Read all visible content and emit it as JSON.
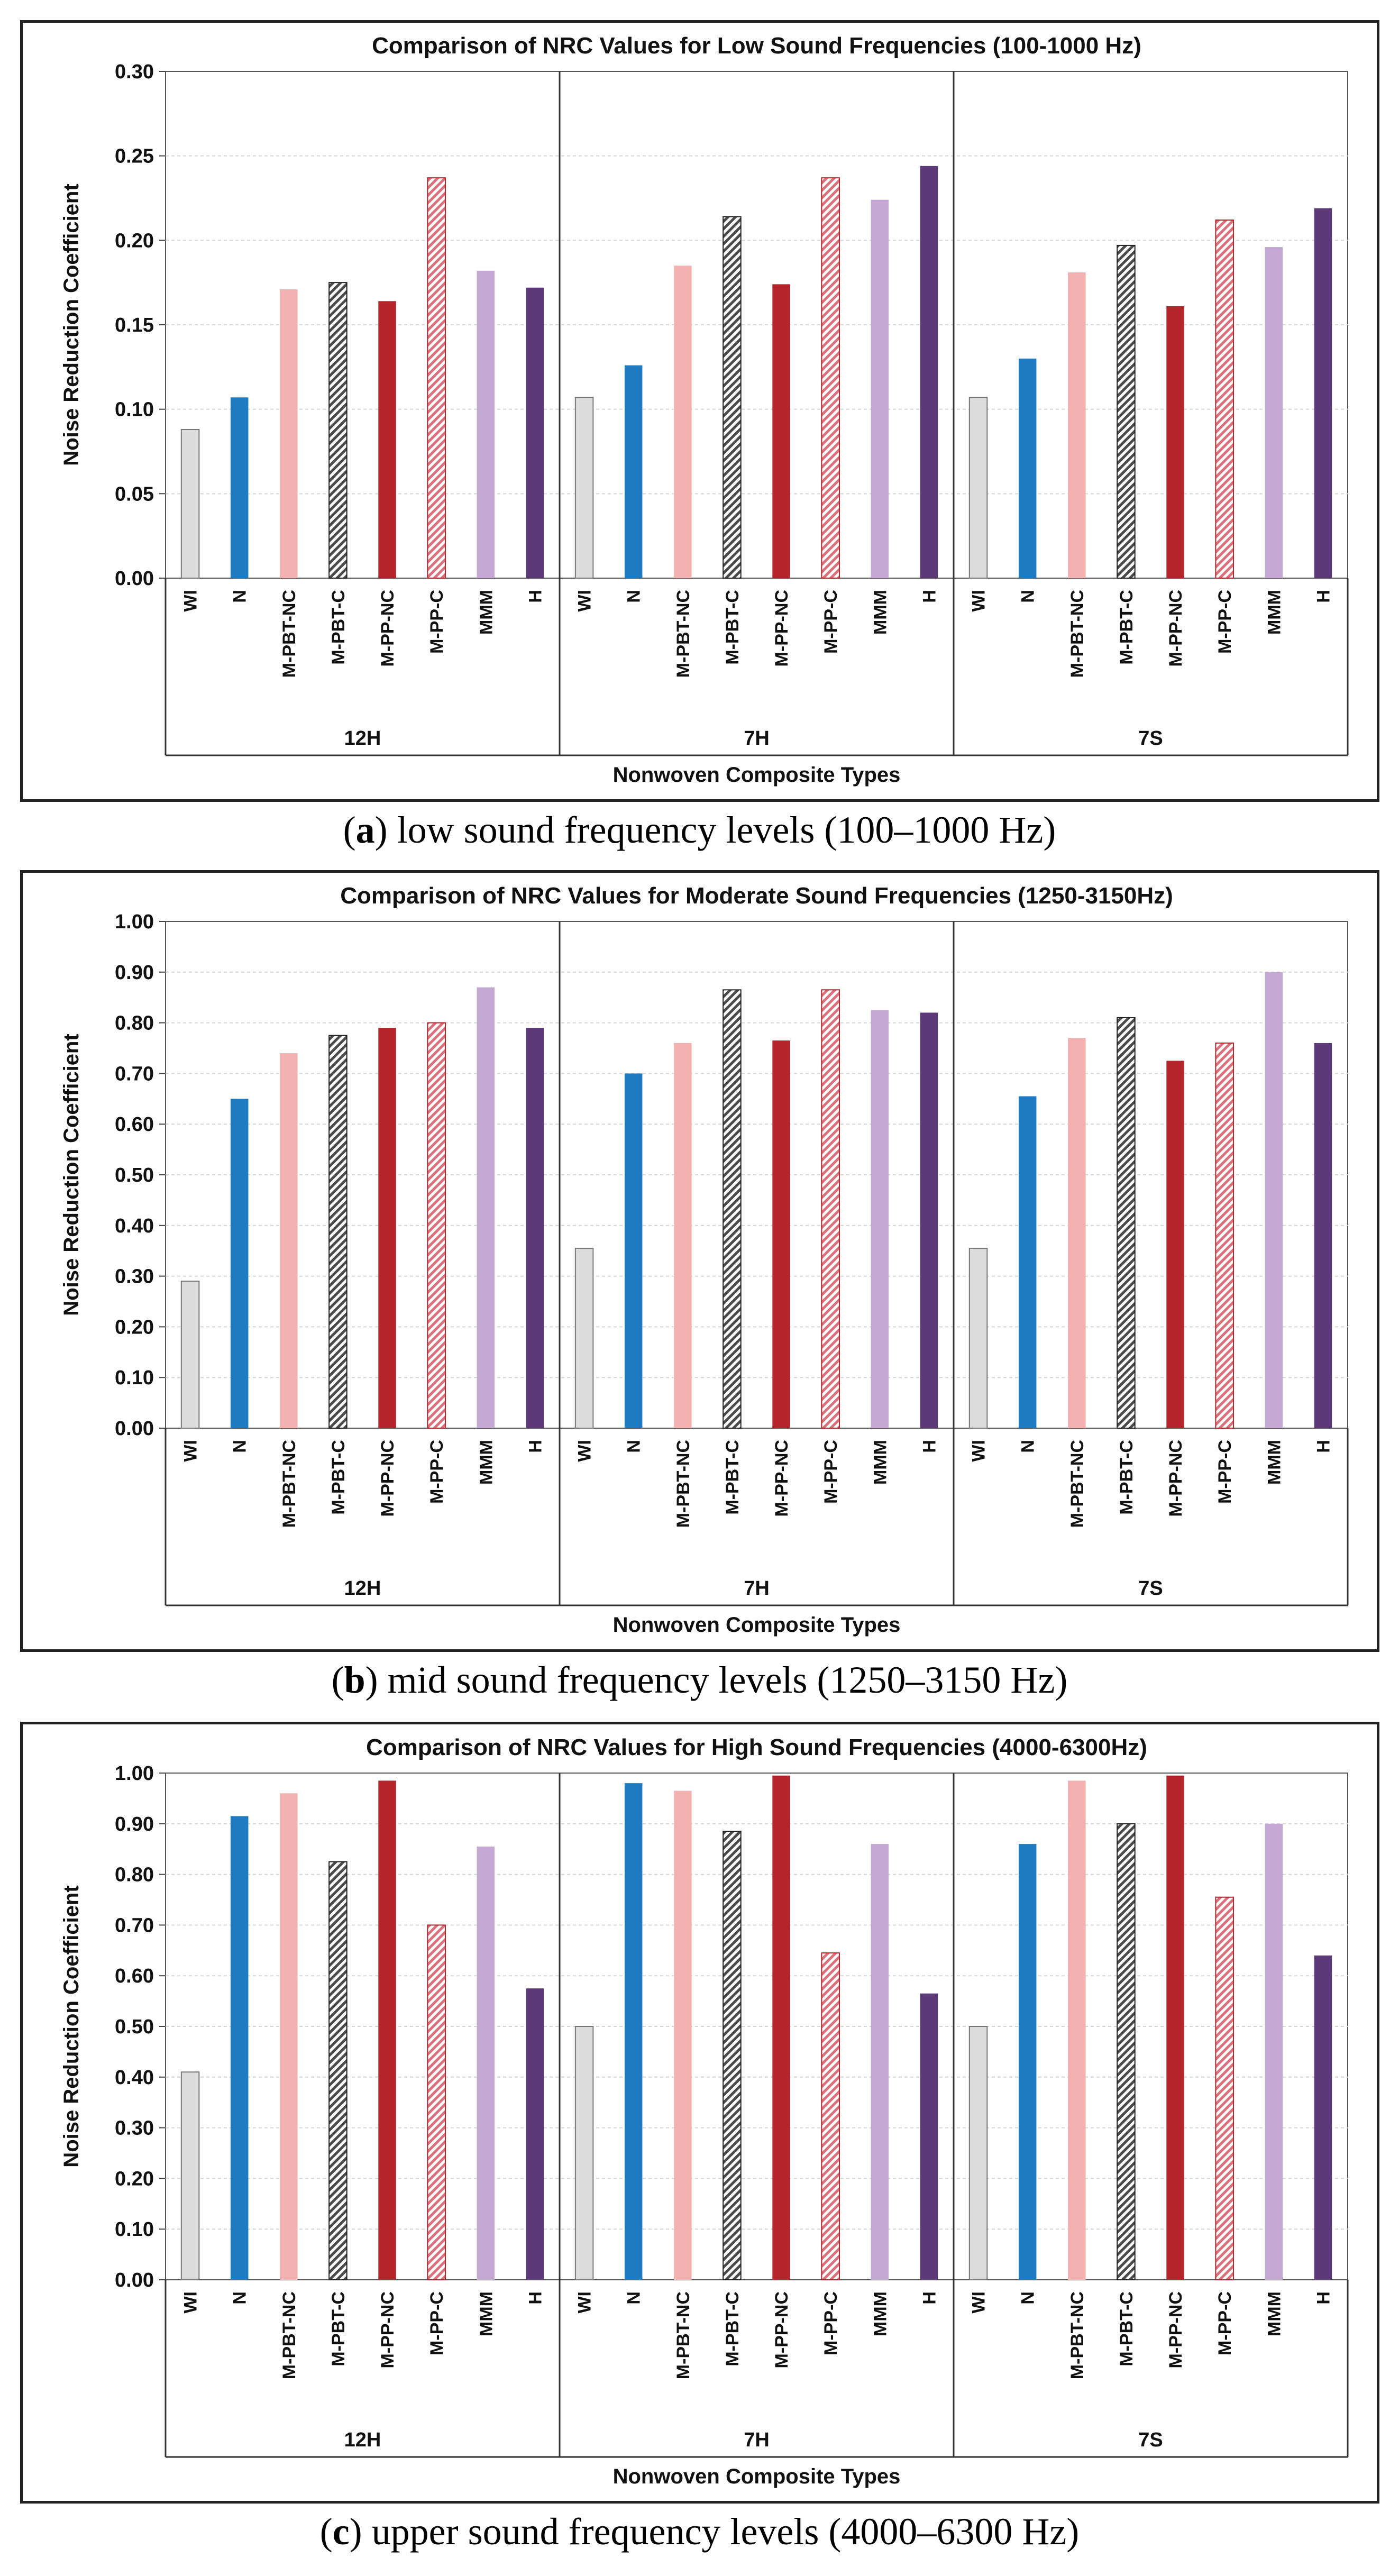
{
  "colors": {
    "WI": "#dcdcdc",
    "N": "#1f7bc1",
    "M-PBT-NC": "#f4b1b1",
    "M-PBT-C": "#4a4a4a",
    "M-PP-NC": "#b3252a",
    "M-PP-C": "#d9707a",
    "MMM": "#c4a8d4",
    "H": "#5c3a78"
  },
  "chart_data": [
    {
      "type": "bar",
      "title": "Comparison of NRC Values for Low Sound Frequencies (100-1000 Hz)",
      "xlabel": "Nonwoven Composite Types",
      "ylabel": "Noise Reduction Coefficient",
      "ylim": [
        0,
        0.3
      ],
      "yticks": [
        "0.00",
        "0.05",
        "0.10",
        "0.15",
        "0.20",
        "0.25",
        "0.30"
      ],
      "categories": [
        "WI",
        "N",
        "M-PBT-NC",
        "M-PBT-C",
        "M-PP-NC",
        "M-PP-C",
        "MMM",
        "H"
      ],
      "groups": [
        {
          "name": "12H",
          "values": [
            0.088,
            0.107,
            0.171,
            0.175,
            0.164,
            0.237,
            0.182,
            0.172
          ]
        },
        {
          "name": "7H",
          "values": [
            0.107,
            0.126,
            0.185,
            0.214,
            0.174,
            0.237,
            0.224,
            0.244
          ]
        },
        {
          "name": "7S",
          "values": [
            0.107,
            0.13,
            0.181,
            0.197,
            0.161,
            0.212,
            0.196,
            0.219
          ]
        }
      ],
      "grid": true,
      "caption_letter": "a",
      "caption_text": " low sound frequency levels (100–1000 Hz)"
    },
    {
      "type": "bar",
      "title": "Comparison of NRC Values for Moderate Sound Frequencies (1250-3150Hz)",
      "xlabel": "Nonwoven Composite Types",
      "ylabel": "Noise Reduction Coefficient",
      "ylim": [
        0,
        1.0
      ],
      "yticks": [
        "0.00",
        "0.10",
        "0.20",
        "0.30",
        "0.40",
        "0.50",
        "0.60",
        "0.70",
        "0.80",
        "0.90",
        "1.00"
      ],
      "categories": [
        "WI",
        "N",
        "M-PBT-NC",
        "M-PBT-C",
        "M-PP-NC",
        "M-PP-C",
        "MMM",
        "H"
      ],
      "groups": [
        {
          "name": "12H",
          "values": [
            0.29,
            0.65,
            0.74,
            0.775,
            0.79,
            0.8,
            0.87,
            0.79
          ]
        },
        {
          "name": "7H",
          "values": [
            0.355,
            0.7,
            0.76,
            0.865,
            0.765,
            0.865,
            0.825,
            0.82
          ]
        },
        {
          "name": "7S",
          "values": [
            0.355,
            0.655,
            0.77,
            0.81,
            0.725,
            0.76,
            0.9,
            0.76
          ]
        }
      ],
      "grid": true,
      "caption_letter": "b",
      "caption_text": " mid sound frequency levels (1250–3150 Hz)"
    },
    {
      "type": "bar",
      "title": "Comparison of NRC Values for High Sound Frequencies (4000-6300Hz)",
      "xlabel": "Nonwoven Composite Types",
      "ylabel": "Noise Reduction Coefficient",
      "ylim": [
        0,
        1.0
      ],
      "yticks": [
        "0.00",
        "0.10",
        "0.20",
        "0.30",
        "0.40",
        "0.50",
        "0.60",
        "0.70",
        "0.80",
        "0.90",
        "1.00"
      ],
      "categories": [
        "WI",
        "N",
        "M-PBT-NC",
        "M-PBT-C",
        "M-PP-NC",
        "M-PP-C",
        "MMM",
        "H"
      ],
      "groups": [
        {
          "name": "12H",
          "values": [
            0.41,
            0.915,
            0.96,
            0.825,
            0.985,
            0.7,
            0.855,
            0.575
          ]
        },
        {
          "name": "7H",
          "values": [
            0.5,
            0.98,
            0.965,
            0.885,
            0.995,
            0.645,
            0.86,
            0.565
          ]
        },
        {
          "name": "7S",
          "values": [
            0.5,
            0.86,
            0.985,
            0.9,
            0.995,
            0.755,
            0.9,
            0.64
          ]
        }
      ],
      "grid": true,
      "caption_letter": "c",
      "caption_text": " upper sound frequency levels (4000–6300 Hz)"
    }
  ]
}
